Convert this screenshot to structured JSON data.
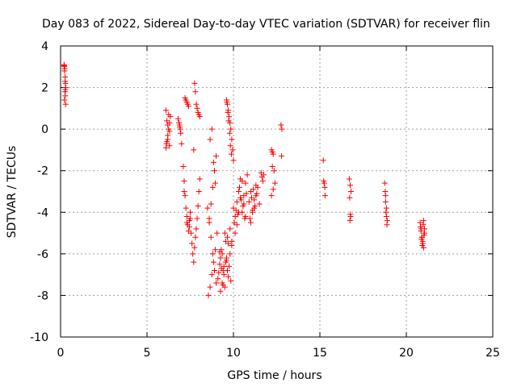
{
  "chart_data": {
    "type": "scatter",
    "title": "Day 083 of 2022, Sidereal Day-to-day VTEC variation (SDTVAR) for receiver flin",
    "xlabel": "GPS time / hours",
    "ylabel": "SDTVAR / TECUs",
    "xlim": [
      0,
      25
    ],
    "ylim": [
      -10,
      4
    ],
    "xticks": [
      0,
      5,
      10,
      15,
      20,
      25
    ],
    "yticks": [
      -10,
      -8,
      -6,
      -4,
      -2,
      0,
      2,
      4
    ],
    "grid": true,
    "marker": "+",
    "color": "#ff0000",
    "series": [
      {
        "name": "SDTVAR",
        "x": [
          0.2,
          0.22,
          0.24,
          0.26,
          0.28,
          0.3,
          0.25,
          0.27,
          0.22,
          0.29,
          0.23,
          0.26,
          0.21,
          0.28,
          6.1,
          6.15,
          6.2,
          6.25,
          6.3,
          6.35,
          6.1,
          6.2,
          6.3,
          6.15,
          6.25,
          6.3,
          6.2,
          6.12,
          6.8,
          6.85,
          6.9,
          6.95,
          7.0,
          6.88,
          6.92,
          7.1,
          7.15,
          7.2,
          7.25,
          7.3,
          7.35,
          7.4,
          7.45,
          7.5,
          7.3,
          7.2,
          7.35,
          7.25,
          7.4,
          7.15,
          7.3,
          7.45,
          7.5,
          7.55,
          7.6,
          7.65,
          7.7,
          7.75,
          7.8,
          7.85,
          7.9,
          7.95,
          8.0,
          8.05,
          7.7,
          7.8,
          7.9,
          8.0,
          7.75,
          7.85,
          7.95,
          8.05,
          8.5,
          8.6,
          8.7,
          8.8,
          8.9,
          9.0,
          8.55,
          8.65,
          8.75,
          8.85,
          8.95,
          9.05,
          8.6,
          8.7,
          8.8,
          8.9,
          9.0,
          8.65,
          8.75,
          8.85,
          8.95,
          9.1,
          9.2,
          9.3,
          9.4,
          9.5,
          9.6,
          9.7,
          9.8,
          9.9,
          9.15,
          9.25,
          9.35,
          9.45,
          9.55,
          9.65,
          9.75,
          9.85,
          9.2,
          9.3,
          9.4,
          9.5,
          9.6,
          9.7,
          9.8,
          9.9,
          9.25,
          9.35,
          9.45,
          9.55,
          9.65,
          9.6,
          9.65,
          9.7,
          9.75,
          9.8,
          9.85,
          9.9,
          9.95,
          10.0,
          9.62,
          9.68,
          9.72,
          9.78,
          9.82,
          9.88,
          10.0,
          10.1,
          10.2,
          10.3,
          10.4,
          10.5,
          10.6,
          10.7,
          10.8,
          10.05,
          10.15,
          10.25,
          10.35,
          10.45,
          10.55,
          10.65,
          10.75,
          10.1,
          10.2,
          10.3,
          10.4,
          10.5,
          10.6,
          10.7,
          10.9,
          11.0,
          11.1,
          11.2,
          11.3,
          11.4,
          11.5,
          10.95,
          11.05,
          11.15,
          11.25,
          11.35,
          11.0,
          11.1,
          11.2,
          11.3,
          11.6,
          11.65,
          11.7,
          11.75,
          12.2,
          12.25,
          12.3,
          12.35,
          12.4,
          12.2,
          12.3,
          12.25,
          12.75,
          12.8,
          12.78,
          15.2,
          15.25,
          15.3,
          15.22,
          15.28,
          16.7,
          16.75,
          16.8,
          16.72,
          16.78,
          16.74,
          16.76,
          18.75,
          18.8,
          18.85,
          18.9,
          18.78,
          18.82,
          18.88,
          18.8,
          18.85,
          20.8,
          20.85,
          20.9,
          20.95,
          21.0,
          21.05,
          20.82,
          20.88,
          20.92,
          20.98,
          21.02,
          20.85,
          20.95,
          21.05,
          20.9,
          21.0
        ],
        "y": [
          3.1,
          3.0,
          2.9,
          2.5,
          2.2,
          2.0,
          1.8,
          1.6,
          1.4,
          1.2,
          2.8,
          2.3,
          3.05,
          1.9,
          -0.9,
          -0.6,
          -0.3,
          0.0,
          0.3,
          0.6,
          0.9,
          -0.5,
          -0.1,
          0.4,
          0.7,
          -0.8,
          0.2,
          -0.7,
          0.5,
          0.3,
          0.1,
          -0.2,
          -0.7,
          0.2,
          0.0,
          -1.8,
          -2.5,
          -3.2,
          -3.8,
          -4.2,
          -4.6,
          -4.9,
          -4.4,
          -4.0,
          1.3,
          1.5,
          1.2,
          1.4,
          1.1,
          -3.0,
          -4.5,
          -4.7,
          -4.3,
          -5.0,
          -5.5,
          -6.0,
          -6.4,
          -5.7,
          -5.2,
          -4.8,
          -4.3,
          -3.7,
          -3.0,
          -2.4,
          -1.0,
          1.8,
          1.0,
          0.7,
          2.2,
          1.2,
          0.8,
          0.6,
          -3.8,
          -4.5,
          -5.2,
          -6.0,
          -6.8,
          -7.4,
          -8.0,
          -7.6,
          -7.0,
          -6.4,
          -5.8,
          -5.0,
          -4.3,
          -3.6,
          -2.8,
          -2.0,
          -1.3,
          -0.5,
          0.0,
          -1.6,
          -2.6,
          -7.2,
          -6.5,
          -5.8,
          -6.8,
          -7.6,
          -6.2,
          -5.5,
          -4.8,
          -5.4,
          -6.9,
          -7.8,
          -6.0,
          -7.0,
          -6.4,
          -5.2,
          -6.6,
          -7.3,
          -5.9,
          -6.7,
          -7.5,
          -5.0,
          -6.3,
          -7.1,
          -6.0,
          -5.6,
          -6.2,
          -7.4,
          -6.6,
          -5.4,
          -6.8,
          1.4,
          1.2,
          0.9,
          0.6,
          0.3,
          0.0,
          -0.5,
          -1.0,
          -1.5,
          1.3,
          0.8,
          0.4,
          -0.2,
          -0.8,
          -1.2,
          -3.8,
          -4.2,
          -3.5,
          -3.0,
          -2.4,
          -4.0,
          -3.2,
          -2.6,
          -2.2,
          -4.5,
          -3.9,
          -4.1,
          -2.8,
          -3.4,
          -3.7,
          -4.3,
          -3.1,
          -5.0,
          -4.6,
          -4.0,
          -3.3,
          -2.5,
          -3.6,
          -4.2,
          -3.5,
          -3.0,
          -4.0,
          -3.8,
          -3.2,
          -2.8,
          -3.6,
          -4.3,
          -3.3,
          -2.9,
          -3.7,
          -3.1,
          -4.5,
          -3.9,
          -3.4,
          -2.7,
          -2.1,
          -2.3,
          -2.5,
          -2.2,
          -1.0,
          -1.1,
          -1.2,
          -2.0,
          -2.6,
          -3.2,
          -2.9,
          -1.8,
          0.2,
          0.0,
          -1.3,
          -1.5,
          -2.6,
          -3.2,
          -2.5,
          -2.8,
          -2.4,
          -2.7,
          -3.0,
          -3.3,
          -4.2,
          -4.4,
          -4.1,
          -2.6,
          -3.2,
          -3.8,
          -4.4,
          -3.0,
          -4.0,
          -4.6,
          -3.5,
          -4.2,
          -4.5,
          -4.8,
          -5.2,
          -5.5,
          -4.4,
          -5.0,
          -4.7,
          -5.3,
          -5.6,
          -4.6,
          -5.1,
          -4.9,
          -5.4,
          -4.8,
          -5.2,
          -5.7
        ]
      }
    ]
  }
}
